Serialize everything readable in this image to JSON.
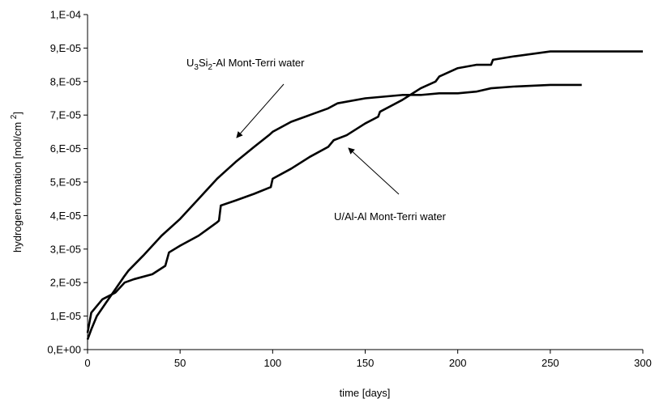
{
  "chart_data": {
    "type": "line",
    "x_label": "time [days]",
    "y_label_parts": [
      "hydrogen formation [mol/cm ",
      "2",
      "]"
    ],
    "xlim": [
      0,
      300
    ],
    "xticks": [
      0,
      50,
      100,
      150,
      200,
      250,
      300
    ],
    "ylim": [
      0,
      0.0001
    ],
    "yticks": [
      {
        "value": 0,
        "label": "0,E+00"
      },
      {
        "value": 1e-05,
        "label": "1,E-05"
      },
      {
        "value": 2e-05,
        "label": "2,E-05"
      },
      {
        "value": 3e-05,
        "label": "3,E-05"
      },
      {
        "value": 4e-05,
        "label": "4,E-05"
      },
      {
        "value": 5e-05,
        "label": "5,E-05"
      },
      {
        "value": 6e-05,
        "label": "6,E-05"
      },
      {
        "value": 7e-05,
        "label": "7,E-05"
      },
      {
        "value": 8e-05,
        "label": "8,E-05"
      },
      {
        "value": 9e-05,
        "label": "9,E-05"
      },
      {
        "value": 0.0001,
        "label": "1,E-04"
      }
    ],
    "grid": false,
    "series": [
      {
        "name_parts": [
          "U",
          "3",
          "Si",
          "2",
          "-Al Mont-Terri water"
        ],
        "color": "#000000",
        "x": [
          0,
          2,
          5,
          10,
          15,
          20,
          22,
          30,
          40,
          50,
          60,
          70,
          72,
          80,
          90,
          98,
          100,
          110,
          120,
          130,
          135,
          150,
          170,
          180,
          190,
          200,
          210,
          218,
          230,
          250,
          267
        ],
        "values": [
          3e-06,
          6e-06,
          1e-05,
          1.4e-05,
          1.8e-05,
          2.2e-05,
          2.35e-05,
          2.8e-05,
          3.4e-05,
          3.9e-05,
          4.5e-05,
          5.1e-05,
          5.2e-05,
          5.6e-05,
          6.05e-05,
          6.4e-05,
          6.5e-05,
          6.8e-05,
          7e-05,
          7.2e-05,
          7.35e-05,
          7.5e-05,
          7.6e-05,
          7.6e-05,
          7.65e-05,
          7.65e-05,
          7.7e-05,
          7.8e-05,
          7.85e-05,
          7.9e-05,
          7.9e-05
        ]
      },
      {
        "name": "U/Al-Al Mont-Terri water",
        "color": "#000000",
        "x": [
          0,
          2,
          5,
          8,
          15,
          20,
          25,
          35,
          42,
          44,
          50,
          60,
          70,
          71,
          72,
          80,
          90,
          99,
          100,
          110,
          120,
          130,
          133,
          140,
          150,
          157,
          158,
          170,
          180,
          188,
          190,
          200,
          210,
          218,
          219,
          230,
          250,
          300
        ],
        "values": [
          5e-06,
          1.1e-05,
          1.3e-05,
          1.5e-05,
          1.7e-05,
          2e-05,
          2.1e-05,
          2.25e-05,
          2.5e-05,
          2.9e-05,
          3.1e-05,
          3.4e-05,
          3.8e-05,
          3.85e-05,
          4.3e-05,
          4.45e-05,
          4.65e-05,
          4.85e-05,
          5.1e-05,
          5.4e-05,
          5.75e-05,
          6.05e-05,
          6.25e-05,
          6.4e-05,
          6.75e-05,
          6.95e-05,
          7.1e-05,
          7.45e-05,
          7.8e-05,
          8e-05,
          8.15e-05,
          8.4e-05,
          8.5e-05,
          8.5e-05,
          8.65e-05,
          8.75e-05,
          8.9e-05,
          8.9e-05
        ]
      }
    ]
  }
}
